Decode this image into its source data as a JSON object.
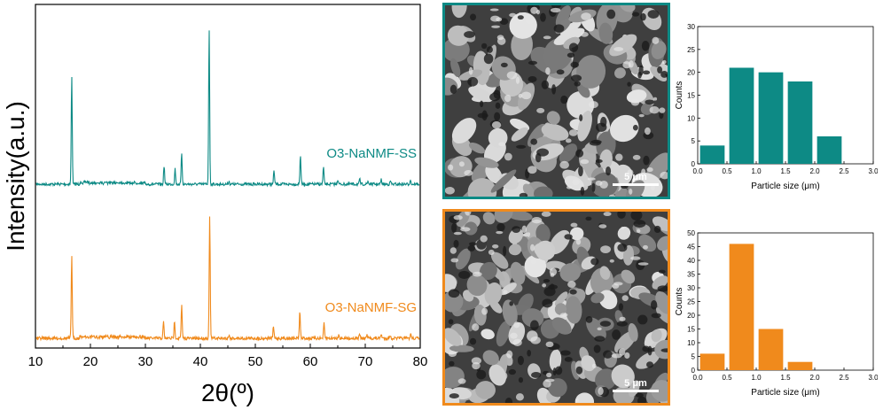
{
  "chart_data": [
    {
      "type": "line",
      "xlabel": "2θ(º)",
      "ylabel": "Intensity(a.u.)",
      "xlim": [
        10,
        80
      ],
      "xticks": [
        10,
        20,
        30,
        40,
        50,
        60,
        70,
        80
      ],
      "series": [
        {
          "name": "O3-NaNMF-SS",
          "color": "#0d8a85",
          "peaks": [
            [
              16.6,
              0.7
            ],
            [
              33.4,
              0.12
            ],
            [
              35.4,
              0.1
            ],
            [
              36.6,
              0.2
            ],
            [
              41.6,
              1.0
            ],
            [
              45.2,
              0.02
            ],
            [
              53.4,
              0.09
            ],
            [
              58.2,
              0.19
            ],
            [
              62.4,
              0.11
            ],
            [
              65.0,
              0.03
            ],
            [
              69.0,
              0.03
            ],
            [
              70.5,
              0.02
            ],
            [
              72.9,
              0.03
            ],
            [
              74.6,
              0.02
            ],
            [
              78.2,
              0.03
            ]
          ]
        },
        {
          "name": "O3-NaNMF-SG",
          "color": "#f08a1c",
          "peaks": [
            [
              16.6,
              0.57
            ],
            [
              33.3,
              0.11
            ],
            [
              35.3,
              0.12
            ],
            [
              36.6,
              0.22
            ],
            [
              41.7,
              0.84
            ],
            [
              45.2,
              0.02
            ],
            [
              53.3,
              0.08
            ],
            [
              58.1,
              0.18
            ],
            [
              62.5,
              0.1
            ],
            [
              65.2,
              0.03
            ],
            [
              69.0,
              0.03
            ],
            [
              70.3,
              0.02
            ],
            [
              72.9,
              0.03
            ],
            [
              74.5,
              0.02
            ],
            [
              78.3,
              0.03
            ]
          ]
        }
      ]
    },
    {
      "type": "bar",
      "xlabel": "Particle size (μm)",
      "ylabel": "Counts",
      "xlim": [
        0.0,
        3.0
      ],
      "ylim": [
        0,
        30
      ],
      "xticks": [
        "0.0",
        "0.5",
        "1.0",
        "1.5",
        "2.0",
        "2.5",
        "3.0"
      ],
      "yticks": [
        0,
        5,
        10,
        15,
        20,
        25,
        30
      ],
      "color": "#0d8a85",
      "bins": [
        [
          0.0,
          0.5
        ],
        [
          0.5,
          1.0
        ],
        [
          1.0,
          1.5
        ],
        [
          1.5,
          2.0
        ],
        [
          2.0,
          2.5
        ]
      ],
      "values": [
        4,
        21,
        20,
        18,
        6
      ]
    },
    {
      "type": "bar",
      "xlabel": "Particle size (μm)",
      "ylabel": "Counts",
      "xlim": [
        0.0,
        3.0
      ],
      "ylim": [
        0,
        50
      ],
      "xticks": [
        "0.0",
        "0.5",
        "1.0",
        "1.5",
        "2.0",
        "2.5",
        "3.0"
      ],
      "yticks": [
        0,
        5,
        10,
        15,
        20,
        25,
        30,
        35,
        40,
        45,
        50
      ],
      "color": "#f08a1c",
      "bins": [
        [
          0.0,
          0.5
        ],
        [
          0.5,
          1.0
        ],
        [
          1.0,
          1.5
        ],
        [
          1.5,
          2.0
        ]
      ],
      "values": [
        6,
        46,
        15,
        3
      ]
    }
  ],
  "sem_images": [
    {
      "border_color": "#0d8a85",
      "scale_label": "5 μm"
    },
    {
      "border_color": "#f08a1c",
      "scale_label": "5 μm"
    }
  ]
}
